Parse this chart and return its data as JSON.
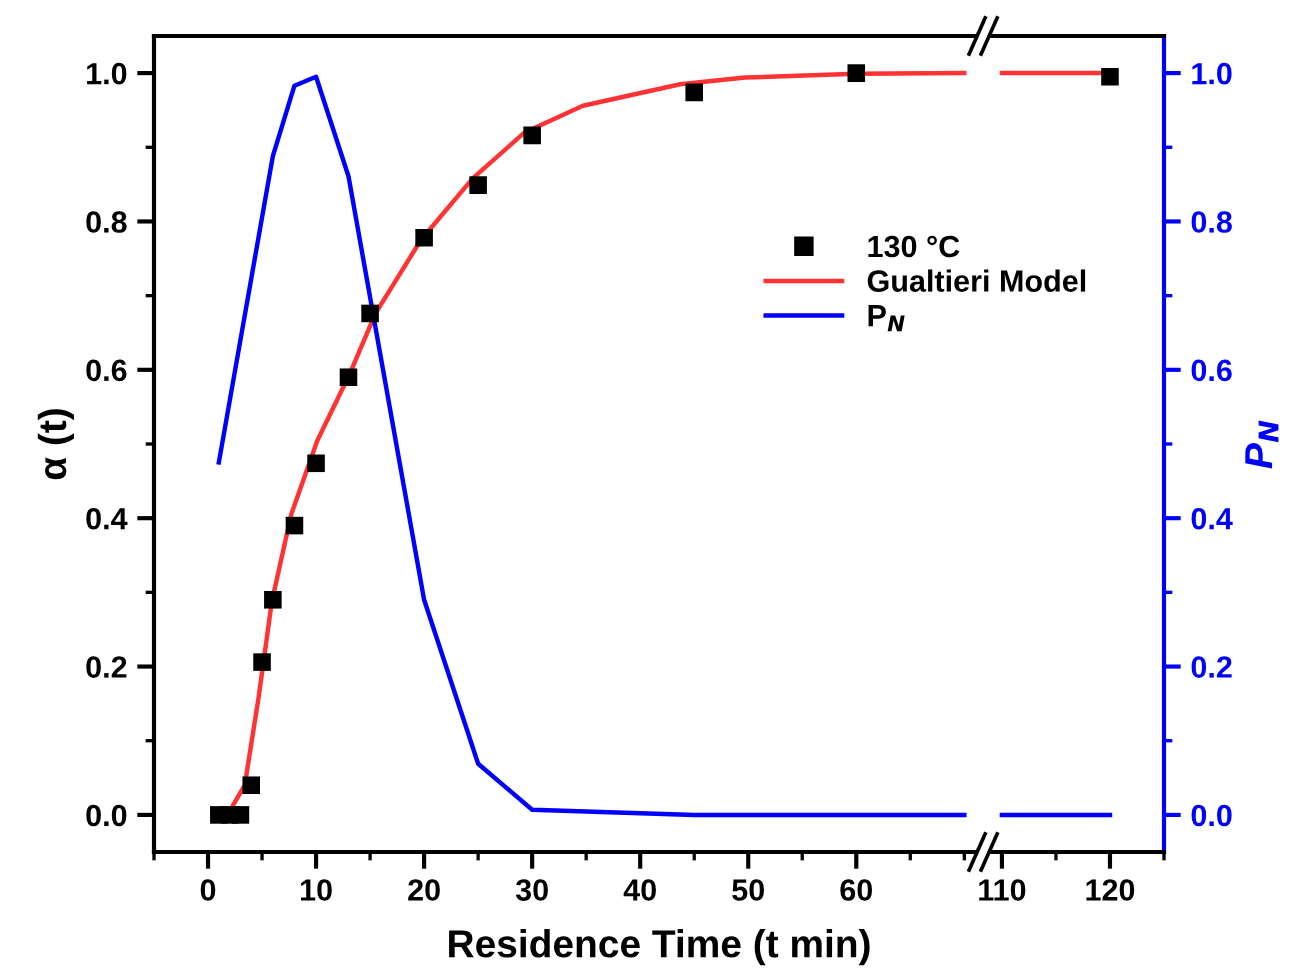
{
  "chart_data": [
    {
      "type": "line",
      "ylabel": "α (t)",
      "xlabel": "Residence Time (t min)",
      "xlim": [
        -5,
        71
      ],
      "xticks": [
        0,
        10,
        20,
        30,
        40,
        50,
        60
      ],
      "ylim": [
        -0.05,
        1.05
      ],
      "yticks": [
        {
          "value": 0,
          "label": "0.0"
        },
        0.2,
        0.4,
        0.6,
        0.8,
        {
          "value": 1,
          "label": "1.0"
        }
      ],
      "legend": "top right",
      "series": [
        {
          "name": "130 °C",
          "type": "scatter",
          "marker": "square",
          "color": "#000000",
          "x": [
            1,
            2,
            3,
            4,
            5,
            6,
            8,
            10,
            13,
            15,
            20,
            25,
            30,
            45,
            60
          ],
          "values": [
            0,
            0,
            0,
            0.04,
            0.206,
            0.29,
            0.39,
            0.474,
            0.59,
            0.676,
            0.778,
            0.849,
            0.916,
            0.974,
            1.0
          ]
        },
        {
          "name": "Gualtieri Model",
          "color": "#ff3333",
          "x": [
            1,
            2,
            3.4,
            4.7,
            5.9,
            7.7,
            10.1,
            13.1,
            15.5,
            19.7,
            24.5,
            29.3,
            34.7,
            43.7,
            49.7,
            60,
            70
          ],
          "values": [
            0,
            0.005,
            0.04,
            0.16,
            0.287,
            0.405,
            0.504,
            0.594,
            0.676,
            0.775,
            0.858,
            0.92,
            0.956,
            0.985,
            0.994,
            0.999,
            1.0
          ]
        },
        {
          "name": "P$_{N}$",
          "color": "#0000ff",
          "x": [
            1,
            6,
            8,
            10,
            13,
            20,
            25,
            30,
            45,
            60,
            70
          ],
          "values": [
            0.475,
            0.888,
            0.983,
            0.995,
            0.861,
            0.29,
            0.069,
            0.007,
            0,
            0,
            0
          ]
        }
      ]
    },
    {
      "type": "line",
      "y2label": "P$_{N}$",
      "xlim": [
        109,
        125
      ],
      "xticks": [
        110,
        120
      ],
      "y2lim": [
        -0.05,
        1.05
      ],
      "y2ticks": [
        {
          "value": 0,
          "label": "0.0"
        },
        0.2,
        0.4,
        0.6,
        0.8,
        {
          "value": 1,
          "label": "1.0"
        }
      ],
      "series": [
        {
          "type": "scatter",
          "marker": "square",
          "axis": "y2",
          "color": "#000000",
          "x": [
            120
          ],
          "values": [
            0.995
          ]
        },
        {
          "axis": "y2",
          "color": "#ff3333",
          "x": [
            110,
            120
          ],
          "values": [
            1.0,
            1.0
          ]
        },
        {
          "axis": "y2",
          "color": "#0000ff",
          "x": [
            110,
            120
          ],
          "values": [
            0,
            0
          ]
        }
      ]
    }
  ]
}
